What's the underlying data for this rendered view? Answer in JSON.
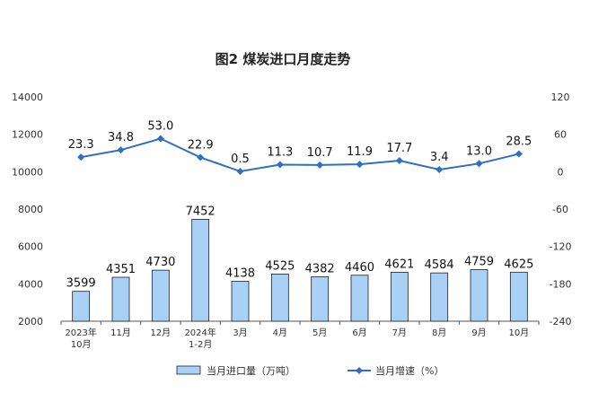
{
  "chart_data": {
    "type": "bar+line",
    "title": "图2  煤炭进口月度走势",
    "categories": [
      [
        "2023年",
        "10月"
      ],
      [
        "11月"
      ],
      [
        "12月"
      ],
      [
        "2024年",
        "1-2月"
      ],
      [
        "3月"
      ],
      [
        "4月"
      ],
      [
        "5月"
      ],
      [
        "6月"
      ],
      [
        "7月"
      ],
      [
        "8月"
      ],
      [
        "9月"
      ],
      [
        "10月"
      ]
    ],
    "series": [
      {
        "name": "当月进口量（万吨）",
        "type": "bar",
        "axis": "left",
        "color": "#a9d0f5",
        "values": [
          3599,
          4351,
          4730,
          7452,
          4138,
          4525,
          4382,
          4460,
          4621,
          4584,
          4759,
          4625
        ]
      },
      {
        "name": "当月增速（%）",
        "type": "line",
        "axis": "right",
        "color": "#2e6fc4",
        "values": [
          23.3,
          34.8,
          53.0,
          22.9,
          0.5,
          11.3,
          10.7,
          11.9,
          17.7,
          3.4,
          13.0,
          28.5
        ],
        "labels": [
          "23.3",
          "34.8",
          "53.0",
          "22.9",
          "0.5",
          "11.3",
          "10.7",
          "11.9",
          "17.7",
          "3.4",
          "13.0",
          "28.5"
        ]
      }
    ],
    "y_left": {
      "min": 2000,
      "max": 14000,
      "ticks": [
        2000,
        4000,
        6000,
        8000,
        10000,
        12000,
        14000
      ]
    },
    "y_right": {
      "min": -240,
      "max": 120,
      "ticks": [
        -240,
        -180,
        -120,
        -60,
        0,
        60,
        120
      ]
    },
    "legend_position": "bottom",
    "grid": false
  }
}
